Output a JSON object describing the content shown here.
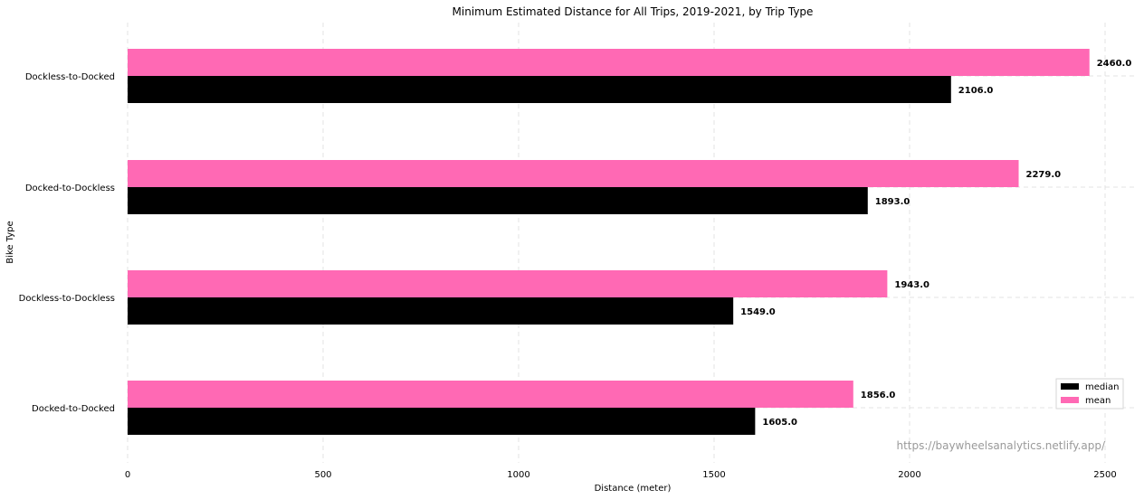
{
  "chart_data": {
    "type": "bar",
    "orientation": "horizontal",
    "title": "Minimum Estimated Distance for All Trips, 2019-2021, by Trip Type",
    "xlabel": "Distance (meter)",
    "ylabel": "Bike Type",
    "categories": [
      "Docked-to-Docked",
      "Dockless-to-Dockless",
      "Docked-to-Dockless",
      "Dockless-to-Docked"
    ],
    "series": [
      {
        "name": "median",
        "color": "#000000",
        "values": [
          1605,
          1549,
          1893,
          2106
        ],
        "labels": [
          "1605.0",
          "1549.0",
          "1893.0",
          "2106.0"
        ]
      },
      {
        "name": "mean",
        "color": "#ff69b4",
        "values": [
          1856,
          1943,
          2279,
          2460
        ],
        "labels": [
          "1856.0",
          "1943.0",
          "2279.0",
          "2460.0"
        ]
      }
    ],
    "xlim": [
      0,
      2585
    ],
    "xticks": [
      0,
      500,
      1000,
      1500,
      2000,
      2500
    ],
    "grid": true,
    "legend_position": "bottom-right",
    "watermark": "https://baywheelsanalytics.netlify.app/"
  }
}
